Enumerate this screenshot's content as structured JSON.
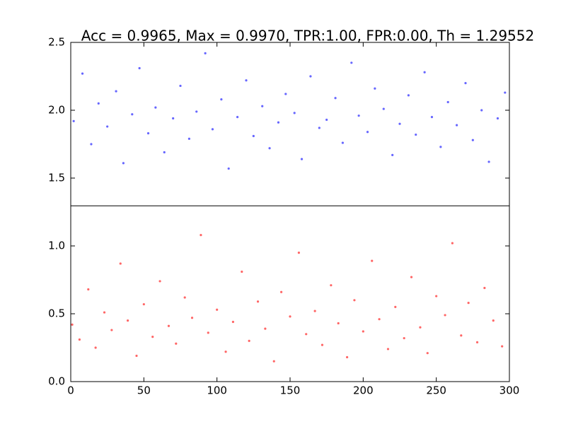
{
  "chart_data": {
    "type": "scatter",
    "title": "Acc = 0.9965, Max = 0.9970, TPR:1.00, FPR:0.00, Th = 1.29552",
    "threshold": 1.29552,
    "xlim": [
      0,
      300
    ],
    "xticks": [
      0,
      50,
      100,
      150,
      200,
      250,
      300
    ],
    "ylim": [
      0,
      2.5
    ],
    "yticks": [
      {
        "value": 0,
        "label": "0.0"
      },
      {
        "value": 0.5,
        "label": "0.5"
      },
      {
        "value": 1,
        "label": "1.0"
      },
      {
        "value": 1.5,
        "label": "1.5"
      },
      {
        "value": 2,
        "label": "2.0"
      },
      {
        "value": 2.5,
        "label": "2.5"
      }
    ],
    "series": [
      {
        "color": "#0000ff",
        "x": [
          2,
          8,
          14,
          19,
          25,
          31,
          36,
          42,
          47,
          53,
          58,
          64,
          70,
          75,
          81,
          86,
          92,
          97,
          103,
          108,
          114,
          120,
          125,
          131,
          136,
          142,
          147,
          153,
          158,
          164,
          170,
          175,
          181,
          186,
          192,
          197,
          203,
          208,
          214,
          220,
          225,
          231,
          236,
          242,
          247,
          253,
          258,
          264,
          270,
          275,
          281,
          286,
          292,
          297
        ],
        "values": [
          1.92,
          2.27,
          1.75,
          2.05,
          1.88,
          2.14,
          1.61,
          1.97,
          2.31,
          1.83,
          2.02,
          1.69,
          1.94,
          2.18,
          1.79,
          1.99,
          2.42,
          1.86,
          2.08,
          1.57,
          1.95,
          2.22,
          1.81,
          2.03,
          1.72,
          1.91,
          2.12,
          1.98,
          1.64,
          2.25,
          1.87,
          1.93,
          2.09,
          1.76,
          2.35,
          1.96,
          1.84,
          2.16,
          2.01,
          1.67,
          1.9,
          2.11,
          1.82,
          2.28,
          1.95,
          1.73,
          2.06,
          1.89,
          2.2,
          1.78,
          2.0,
          1.62,
          1.94,
          2.13
        ]
      },
      {
        "color": "#ff0000",
        "x": [
          1,
          6,
          12,
          17,
          23,
          28,
          34,
          39,
          45,
          50,
          56,
          61,
          67,
          72,
          78,
          83,
          89,
          94,
          100,
          106,
          111,
          117,
          122,
          128,
          133,
          139,
          144,
          150,
          156,
          161,
          167,
          172,
          178,
          183,
          189,
          194,
          200,
          206,
          211,
          217,
          222,
          228,
          233,
          239,
          244,
          250,
          256,
          261,
          267,
          272,
          278,
          283,
          289,
          295
        ],
        "values": [
          0.42,
          0.31,
          0.68,
          0.25,
          0.51,
          0.38,
          0.87,
          0.45,
          0.19,
          0.57,
          0.33,
          0.74,
          0.41,
          0.28,
          0.62,
          0.47,
          1.08,
          0.36,
          0.53,
          0.22,
          0.44,
          0.81,
          0.3,
          0.59,
          0.39,
          0.15,
          0.66,
          0.48,
          0.95,
          0.35,
          0.52,
          0.27,
          0.71,
          0.43,
          0.18,
          0.6,
          0.37,
          0.89,
          0.46,
          0.24,
          0.55,
          0.32,
          0.77,
          0.4,
          0.21,
          0.63,
          0.49,
          1.02,
          0.34,
          0.58,
          0.29,
          0.69,
          0.45,
          0.26
        ]
      }
    ]
  }
}
